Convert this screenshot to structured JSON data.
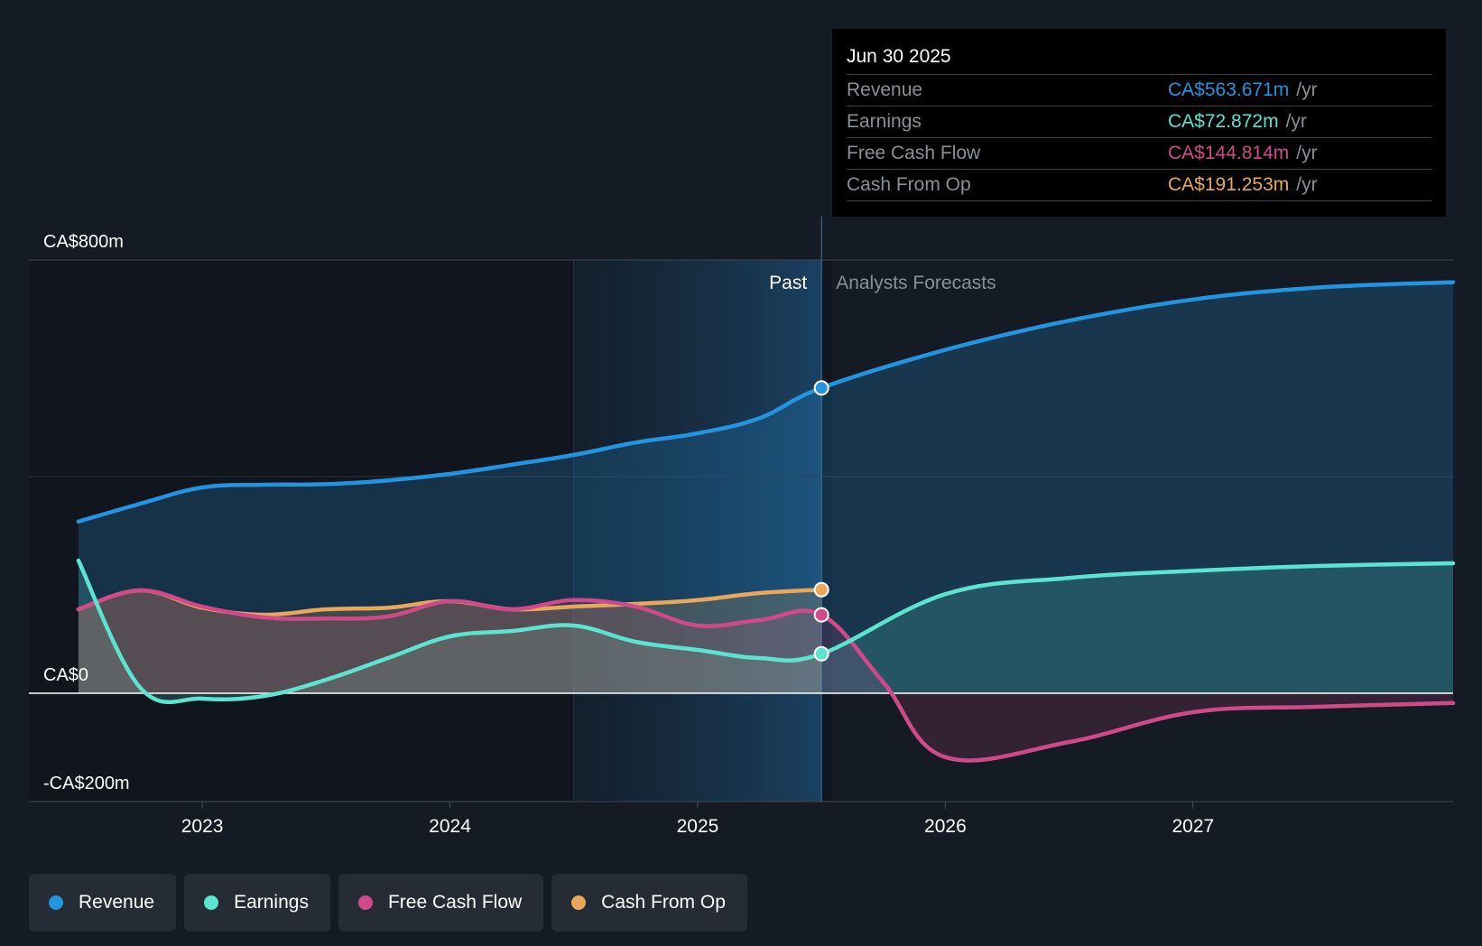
{
  "chart_data": {
    "type": "area",
    "title": "",
    "xlabel": "",
    "ylabel": "",
    "currency": "CA$",
    "ylim": [
      -200,
      800
    ],
    "y_ticks": [
      {
        "value": 800,
        "label": "CA$800m"
      },
      {
        "value": 0,
        "label": "CA$0"
      },
      {
        "value": -200,
        "label": "-CA$200m"
      }
    ],
    "x_range": [
      2022.3,
      2028.05
    ],
    "x_ticks": [
      {
        "value": 2023,
        "label": "2023"
      },
      {
        "value": 2024,
        "label": "2024"
      },
      {
        "value": 2025,
        "label": "2025"
      },
      {
        "value": 2026,
        "label": "2026"
      },
      {
        "value": 2027,
        "label": "2027"
      }
    ],
    "divider_x": 2025.5,
    "highlight_start_x": 2024.5,
    "past_label": "Past",
    "forecast_label": "Analysts Forecasts",
    "series": [
      {
        "name": "Revenue",
        "color": "#2394df",
        "points": [
          [
            2022.5,
            317
          ],
          [
            2022.75,
            350
          ],
          [
            2023.0,
            380
          ],
          [
            2023.25,
            385
          ],
          [
            2023.5,
            386
          ],
          [
            2023.75,
            393
          ],
          [
            2024.0,
            405
          ],
          [
            2024.25,
            422
          ],
          [
            2024.5,
            440
          ],
          [
            2024.75,
            463
          ],
          [
            2025.0,
            480
          ],
          [
            2025.25,
            508
          ],
          [
            2025.5,
            563.671
          ]
        ],
        "forecast": [
          [
            2025.5,
            563.671
          ],
          [
            2026.0,
            634
          ],
          [
            2026.5,
            688
          ],
          [
            2027.0,
            727
          ],
          [
            2027.5,
            749
          ],
          [
            2028.05,
            759
          ]
        ]
      },
      {
        "name": "Earnings",
        "color": "#5de4d0",
        "points": [
          [
            2022.5,
            245
          ],
          [
            2022.75,
            10
          ],
          [
            2023.0,
            -10
          ],
          [
            2023.25,
            -5
          ],
          [
            2023.5,
            25
          ],
          [
            2023.75,
            65
          ],
          [
            2024.0,
            105
          ],
          [
            2024.25,
            115
          ],
          [
            2024.5,
            125
          ],
          [
            2024.75,
            95
          ],
          [
            2025.0,
            80
          ],
          [
            2025.25,
            65
          ],
          [
            2025.5,
            72.872
          ]
        ],
        "forecast": [
          [
            2025.5,
            72.872
          ],
          [
            2026.0,
            183
          ],
          [
            2026.5,
            213
          ],
          [
            2027.0,
            226
          ],
          [
            2027.5,
            235
          ],
          [
            2028.05,
            240
          ]
        ]
      },
      {
        "name": "Free Cash Flow",
        "color": "#d04a8b",
        "points": [
          [
            2022.5,
            155
          ],
          [
            2022.75,
            190
          ],
          [
            2023.0,
            160
          ],
          [
            2023.25,
            140
          ],
          [
            2023.5,
            138
          ],
          [
            2023.75,
            142
          ],
          [
            2024.0,
            170
          ],
          [
            2024.25,
            155
          ],
          [
            2024.5,
            172
          ],
          [
            2024.75,
            160
          ],
          [
            2025.0,
            125
          ],
          [
            2025.25,
            135
          ],
          [
            2025.5,
            144.814
          ]
        ],
        "forecast": [
          [
            2025.5,
            144.814
          ],
          [
            2025.75,
            20
          ],
          [
            2026.0,
            -118
          ],
          [
            2026.5,
            -90
          ],
          [
            2027.0,
            -35
          ],
          [
            2027.5,
            -25
          ],
          [
            2028.05,
            -18
          ]
        ]
      },
      {
        "name": "Cash From Op",
        "color": "#e8a85c",
        "points": [
          [
            2022.5,
            155
          ],
          [
            2022.75,
            190
          ],
          [
            2023.0,
            158
          ],
          [
            2023.25,
            145
          ],
          [
            2023.5,
            155
          ],
          [
            2023.75,
            158
          ],
          [
            2024.0,
            170
          ],
          [
            2024.25,
            155
          ],
          [
            2024.5,
            160
          ],
          [
            2024.75,
            165
          ],
          [
            2025.0,
            172
          ],
          [
            2025.25,
            185
          ],
          [
            2025.5,
            191.253
          ]
        ],
        "forecast": []
      }
    ]
  },
  "tooltip": {
    "date": "Jun 30 2025",
    "rows": [
      {
        "label": "Revenue",
        "value": "CA$563.671m",
        "unit": "/yr",
        "color": "#2394df"
      },
      {
        "label": "Earnings",
        "value": "CA$72.872m",
        "unit": "/yr",
        "color": "#5de4d0"
      },
      {
        "label": "Free Cash Flow",
        "value": "CA$144.814m",
        "unit": "/yr",
        "color": "#d04a8b"
      },
      {
        "label": "Cash From Op",
        "value": "CA$191.253m",
        "unit": "/yr",
        "color": "#e8a85c"
      }
    ]
  },
  "legend": [
    {
      "label": "Revenue",
      "color": "#2394df"
    },
    {
      "label": "Earnings",
      "color": "#5de4d0"
    },
    {
      "label": "Free Cash Flow",
      "color": "#d04a8b"
    },
    {
      "label": "Cash From Op",
      "color": "#e8a85c"
    }
  ]
}
